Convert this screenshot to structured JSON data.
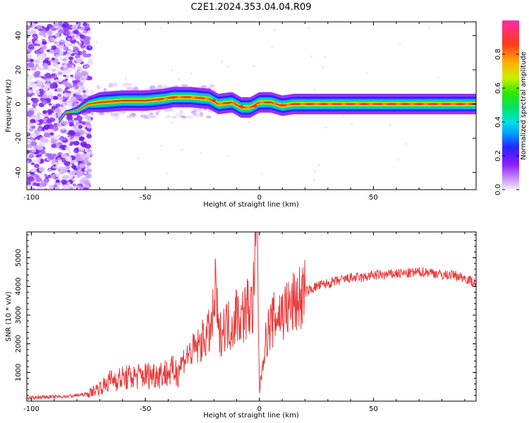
{
  "title": "C2E1.2024.353.04.04.R09",
  "chart_data": [
    {
      "type": "heatmap",
      "xlabel": "Height of straight line (km)",
      "ylabel": "Frequency (Hz)",
      "xlim": [
        -102,
        95
      ],
      "ylim": [
        -50,
        48
      ],
      "x_ticks": [
        "-100",
        "-50",
        "0",
        "50"
      ],
      "y_ticks": [
        "40",
        "20",
        "0",
        "-20",
        "-40"
      ],
      "colorbar": {
        "label": "Normalized spectral amplitude",
        "range": [
          0,
          1
        ],
        "ticks": [
          "0.0",
          "0.2",
          "0.4",
          "0.6",
          "0.8"
        ]
      },
      "ridge_frequency": [
        [
          -88,
          -10
        ],
        [
          -85,
          -5
        ],
        [
          -80,
          -4
        ],
        [
          -75,
          0
        ],
        [
          -70,
          1
        ],
        [
          -60,
          2
        ],
        [
          -50,
          2
        ],
        [
          -42,
          3
        ],
        [
          -38,
          4
        ],
        [
          -30,
          4
        ],
        [
          -22,
          3
        ],
        [
          -18,
          0
        ],
        [
          -12,
          1
        ],
        [
          -8,
          -2
        ],
        [
          -4,
          -2
        ],
        [
          0,
          1
        ],
        [
          5,
          1
        ],
        [
          10,
          -1
        ],
        [
          15,
          0
        ],
        [
          25,
          0
        ],
        [
          35,
          0
        ],
        [
          45,
          0
        ],
        [
          52,
          0
        ],
        [
          60,
          0
        ],
        [
          70,
          0
        ],
        [
          80,
          0
        ],
        [
          95,
          0
        ]
      ]
    },
    {
      "type": "line",
      "xlabel": "Height of straight line (km)",
      "ylabel": "SNR (10 * v/v)",
      "xlim": [
        -102,
        95
      ],
      "ylim": [
        0,
        5900
      ],
      "x_ticks": [
        "-100",
        "-50",
        "0",
        "50"
      ],
      "y_ticks": [
        "1000",
        "2000",
        "3000",
        "4000",
        "5000"
      ],
      "color": "#e83a3a",
      "series": [
        {
          "points": [
            [
              -102,
              100
            ],
            [
              -95,
              150
            ],
            [
              -88,
              150
            ],
            [
              -80,
              200
            ],
            [
              -75,
              250
            ],
            [
              -72,
              400
            ],
            [
              -68,
              550
            ],
            [
              -65,
              750
            ],
            [
              -60,
              800
            ],
            [
              -55,
              850
            ],
            [
              -50,
              900
            ],
            [
              -45,
              950
            ],
            [
              -40,
              1000
            ],
            [
              -36,
              1050
            ],
            [
              -33,
              1500
            ],
            [
              -30,
              1700
            ],
            [
              -27,
              1900
            ],
            [
              -24,
              2200
            ],
            [
              -21,
              2500
            ],
            [
              -19,
              4000
            ],
            [
              -18,
              2200
            ],
            [
              -15,
              2700
            ],
            [
              -12,
              2600
            ],
            [
              -10,
              3100
            ],
            [
              -8,
              2900
            ],
            [
              -5,
              3300
            ],
            [
              -3,
              3200
            ],
            [
              -1,
              6100
            ],
            [
              0,
              300
            ],
            [
              2,
              1800
            ],
            [
              4,
              2500
            ],
            [
              6,
              2800
            ],
            [
              8,
              3000
            ],
            [
              10,
              3100
            ],
            [
              12,
              3200
            ],
            [
              14,
              3300
            ],
            [
              16,
              3500
            ],
            [
              18,
              3600
            ],
            [
              20,
              3800
            ],
            [
              25,
              4000
            ],
            [
              30,
              4100
            ],
            [
              35,
              4200
            ],
            [
              40,
              4300
            ],
            [
              45,
              4300
            ],
            [
              50,
              4400
            ],
            [
              55,
              4400
            ],
            [
              60,
              4450
            ],
            [
              65,
              4450
            ],
            [
              70,
              4500
            ],
            [
              75,
              4500
            ],
            [
              80,
              4400
            ],
            [
              85,
              4400
            ],
            [
              90,
              4300
            ],
            [
              95,
              4100
            ]
          ]
        }
      ]
    }
  ]
}
